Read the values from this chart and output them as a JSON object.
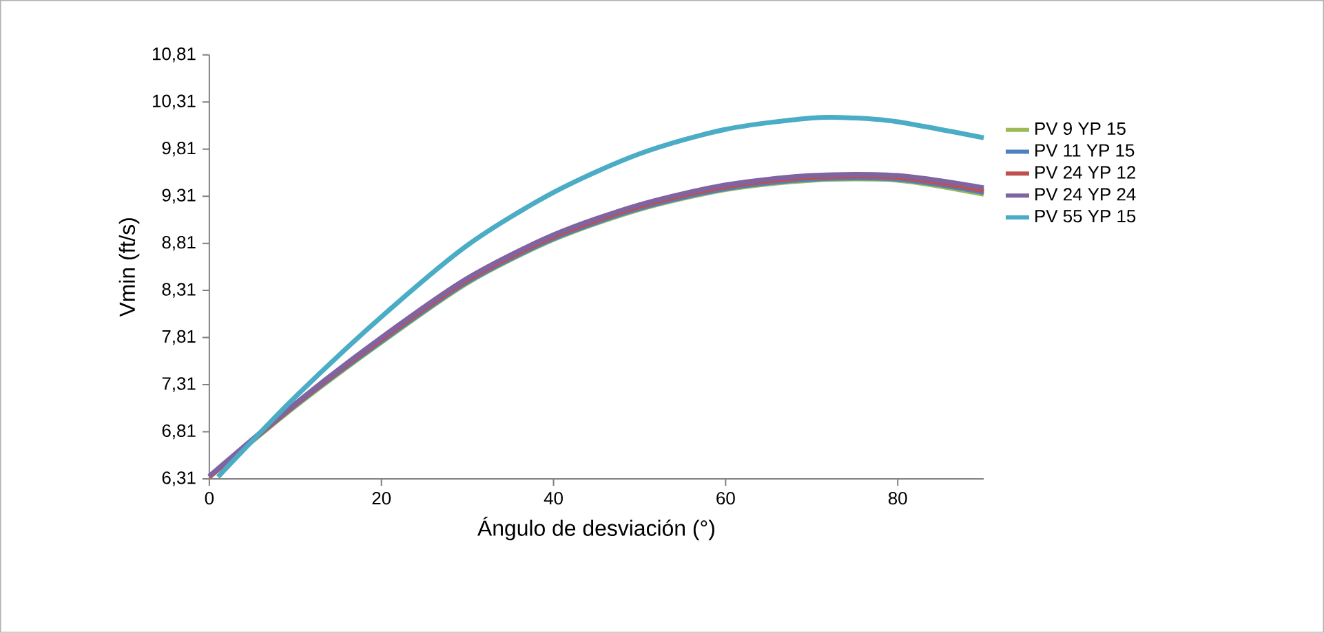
{
  "chart_data": {
    "type": "line",
    "xlabel": "Ángulo de desviación (°)",
    "ylabel": "Vmin (ft/s)",
    "xlim": [
      0,
      90
    ],
    "xticks": [
      0,
      20,
      40,
      60,
      80
    ],
    "ylim": [
      6.31,
      10.81
    ],
    "yticks": [
      {
        "value": 6.31,
        "label": "6,31"
      },
      {
        "value": 6.81,
        "label": "6,81"
      },
      {
        "value": 7.31,
        "label": "7,31"
      },
      {
        "value": 7.81,
        "label": "7,81"
      },
      {
        "value": 8.31,
        "label": "8,31"
      },
      {
        "value": 8.81,
        "label": "8,81"
      },
      {
        "value": 9.31,
        "label": "9,31"
      },
      {
        "value": 9.81,
        "label": "9,81"
      },
      {
        "value": 10.31,
        "label": "10,31"
      },
      {
        "value": 10.81,
        "label": "10,81"
      }
    ],
    "grid": false,
    "legend": "right",
    "marker": "none",
    "line_style": "solid",
    "x": [
      0,
      10,
      20,
      30,
      40,
      50,
      60,
      70,
      80,
      90
    ],
    "series": [
      {
        "name": "PV 9 YP 15",
        "color": "#9bbb59",
        "values": [
          6.33,
          7.08,
          7.76,
          8.39,
          8.85,
          9.17,
          9.38,
          9.48,
          9.48,
          9.33
        ]
      },
      {
        "name": "PV 11 YP 15",
        "color": "#4f81bd",
        "values": [
          6.33,
          7.09,
          7.77,
          8.4,
          8.86,
          9.18,
          9.39,
          9.49,
          9.49,
          9.35
        ]
      },
      {
        "name": "PV 24 YP 12",
        "color": "#c0504d",
        "values": [
          6.33,
          7.1,
          7.79,
          8.42,
          8.88,
          9.2,
          9.41,
          9.51,
          9.51,
          9.37
        ]
      },
      {
        "name": "PV 24 YP 24",
        "color": "#8064a2",
        "values": [
          6.34,
          7.11,
          7.81,
          8.44,
          8.9,
          9.22,
          9.43,
          9.53,
          9.53,
          9.4
        ]
      },
      {
        "name": "PV 55 YP 15",
        "color": "#4bacc6",
        "x": [
          1,
          10,
          20,
          30,
          40,
          50,
          60,
          70,
          75,
          80,
          90
        ],
        "values": [
          6.33,
          7.18,
          8.03,
          8.79,
          9.35,
          9.76,
          10.02,
          10.14,
          10.14,
          10.1,
          9.93
        ]
      }
    ]
  }
}
